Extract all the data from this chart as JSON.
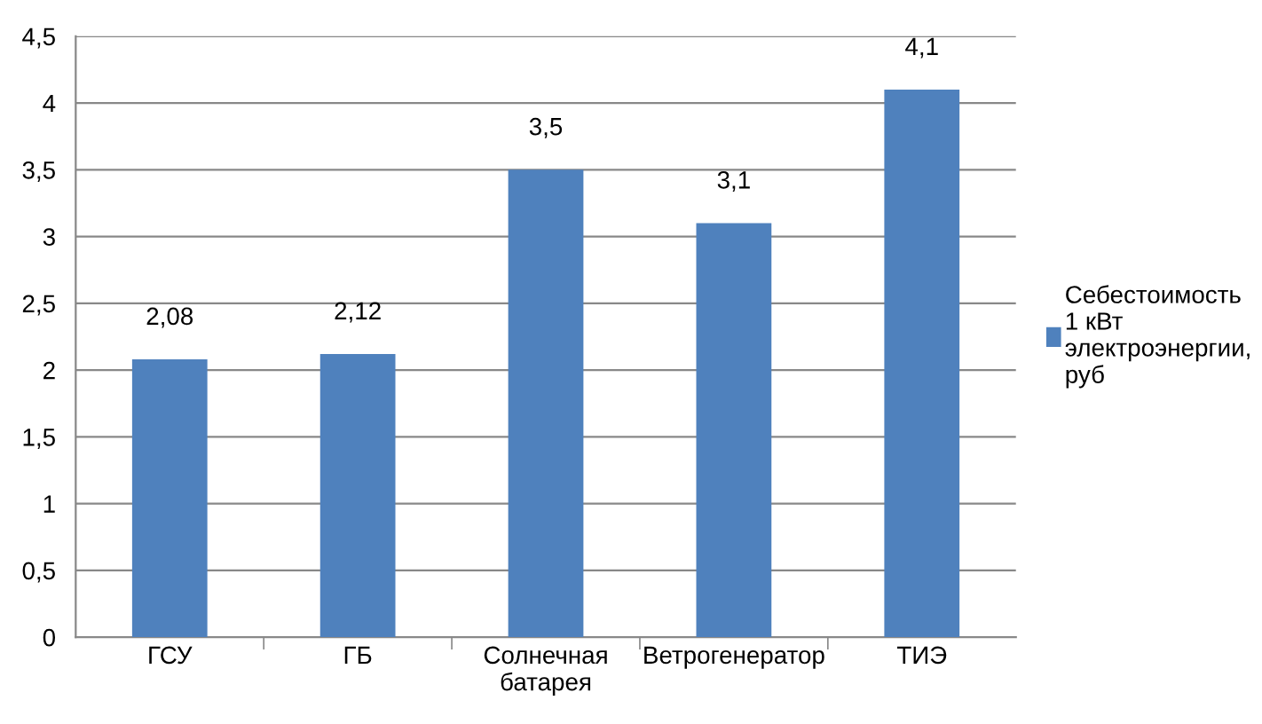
{
  "chart_data": {
    "type": "bar",
    "categories": [
      "ГСУ",
      "ГБ",
      "Солнечная\nбатарея",
      "Ветрогенератор",
      "ТИЭ"
    ],
    "series": [
      {
        "name": "Себестоимость\n1 кВт\nэлектроэнергии,\nруб",
        "color": "#4f81bd",
        "values": [
          2.08,
          2.12,
          3.5,
          3.1,
          4.1
        ],
        "value_labels": [
          "2,08",
          "2,12",
          "3,5",
          "3,1",
          "4,1"
        ]
      }
    ],
    "ylim": [
      0,
      4.5
    ],
    "yticks": [
      {
        "value": 0,
        "label": "0"
      },
      {
        "value": 0.5,
        "label": "0,5"
      },
      {
        "value": 1,
        "label": "1"
      },
      {
        "value": 1.5,
        "label": "1,5"
      },
      {
        "value": 2,
        "label": "2"
      },
      {
        "value": 2.5,
        "label": "2,5"
      },
      {
        "value": 3,
        "label": "3"
      },
      {
        "value": 3.5,
        "label": "3,5"
      },
      {
        "value": 4,
        "label": "4"
      },
      {
        "value": 4.5,
        "label": "4,5"
      }
    ],
    "grid": "y",
    "legend": "right"
  }
}
